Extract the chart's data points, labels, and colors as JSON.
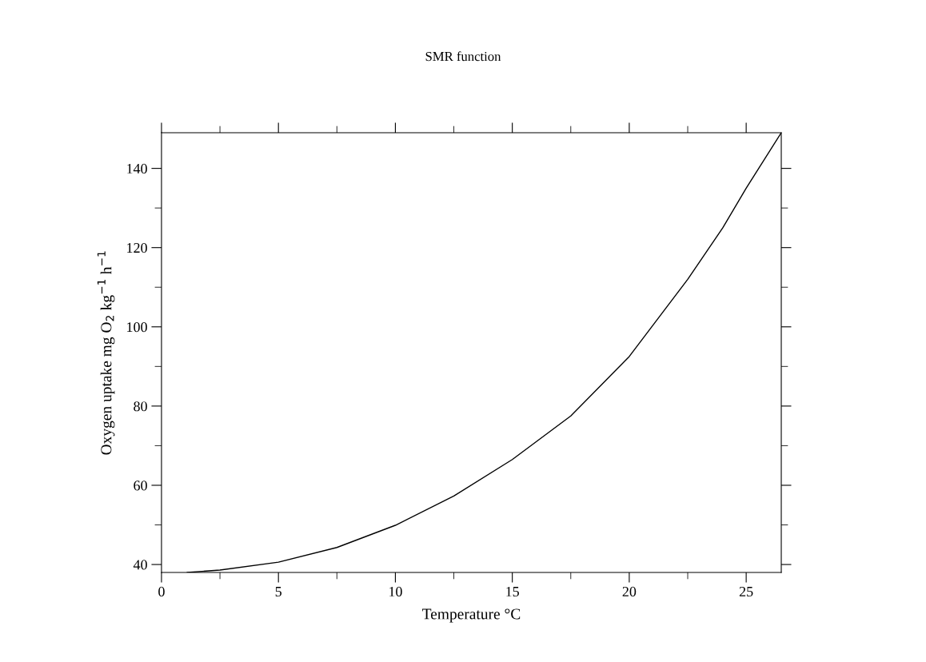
{
  "chart_data": {
    "type": "line",
    "title": "SMR function",
    "xlabel": "Temperature °C",
    "ylabel": "Oxygen uptake mg O$_{2}$ kg$^{−1}$ h$^{−1}$",
    "x": [
      1.1,
      2.5,
      5,
      7.5,
      10,
      12.5,
      15,
      17.5,
      20,
      22.5,
      24,
      25,
      26.5
    ],
    "series": [
      {
        "color": "#000000",
        "values": [
          38,
          38.6,
          40.6,
          44.3,
          49.9,
          57.3,
          66.5,
          77.5,
          92.5,
          112,
          125,
          135,
          149
        ]
      }
    ],
    "xlim": [
      0,
      26.5
    ],
    "ylim": [
      38,
      149
    ],
    "xticks": [
      0,
      5,
      10,
      15,
      20,
      25
    ],
    "yticks": [
      40,
      60,
      80,
      100,
      120,
      140
    ],
    "grid": false,
    "legend": false,
    "marker": "none",
    "line_style": "solid"
  }
}
